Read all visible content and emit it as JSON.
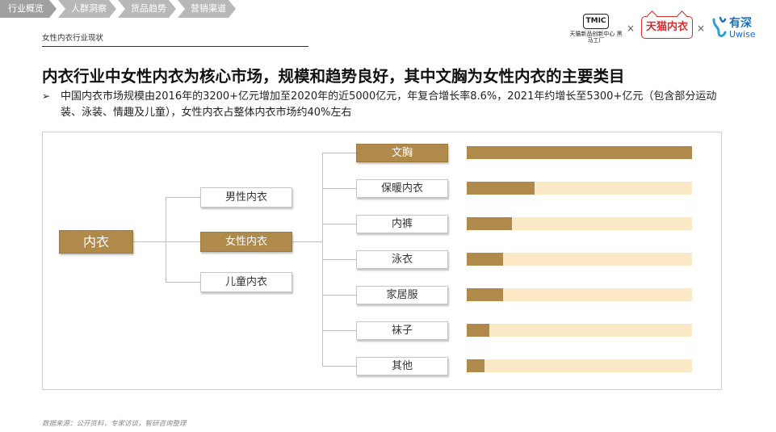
{
  "nav": {
    "tabs": [
      {
        "label": "行业概览"
      },
      {
        "label": "人群洞察"
      },
      {
        "label": "货品趋势"
      },
      {
        "label": "营销渠道"
      }
    ]
  },
  "section": {
    "label": "女性内衣行业现状"
  },
  "brands": {
    "tmic_logo": "TMIC",
    "tmic_sub": "天猫新品创新中心 黑马工厂",
    "separator": "×",
    "tmall_logo": "天猫内衣",
    "uwise_cn": "有深",
    "uwise_en": "Uwise"
  },
  "headline": "内衣行业中女性内衣为核心市场，规模和趋势良好，其中文胸为女性内衣的主要类目",
  "bullet": {
    "arrow": "➢",
    "text": "中国内衣市场规模由2016年的3200+亿元增加至2020年的近5000亿元，年复合增长率8.6%，2021年约增长至5300+亿元（包含部分运动装、泳装、情趣及儿童），女性内衣占整体内衣市场约40%左右"
  },
  "tree": {
    "root": "内衣",
    "level2": [
      "男性内衣",
      "女性内衣",
      "儿童内衣"
    ],
    "level3": [
      "文胸",
      "保暖内衣",
      "内裤",
      "泳衣",
      "家居服",
      "袜子",
      "其他"
    ]
  },
  "bars": {
    "fill_color": "#b08a4a",
    "track_color": "#fce9c6",
    "values": [
      1.0,
      0.3,
      0.2,
      0.16,
      0.16,
      0.1,
      0.08
    ]
  },
  "source": "数据来源：公开资料，专家访谈，智研咨询整理"
}
